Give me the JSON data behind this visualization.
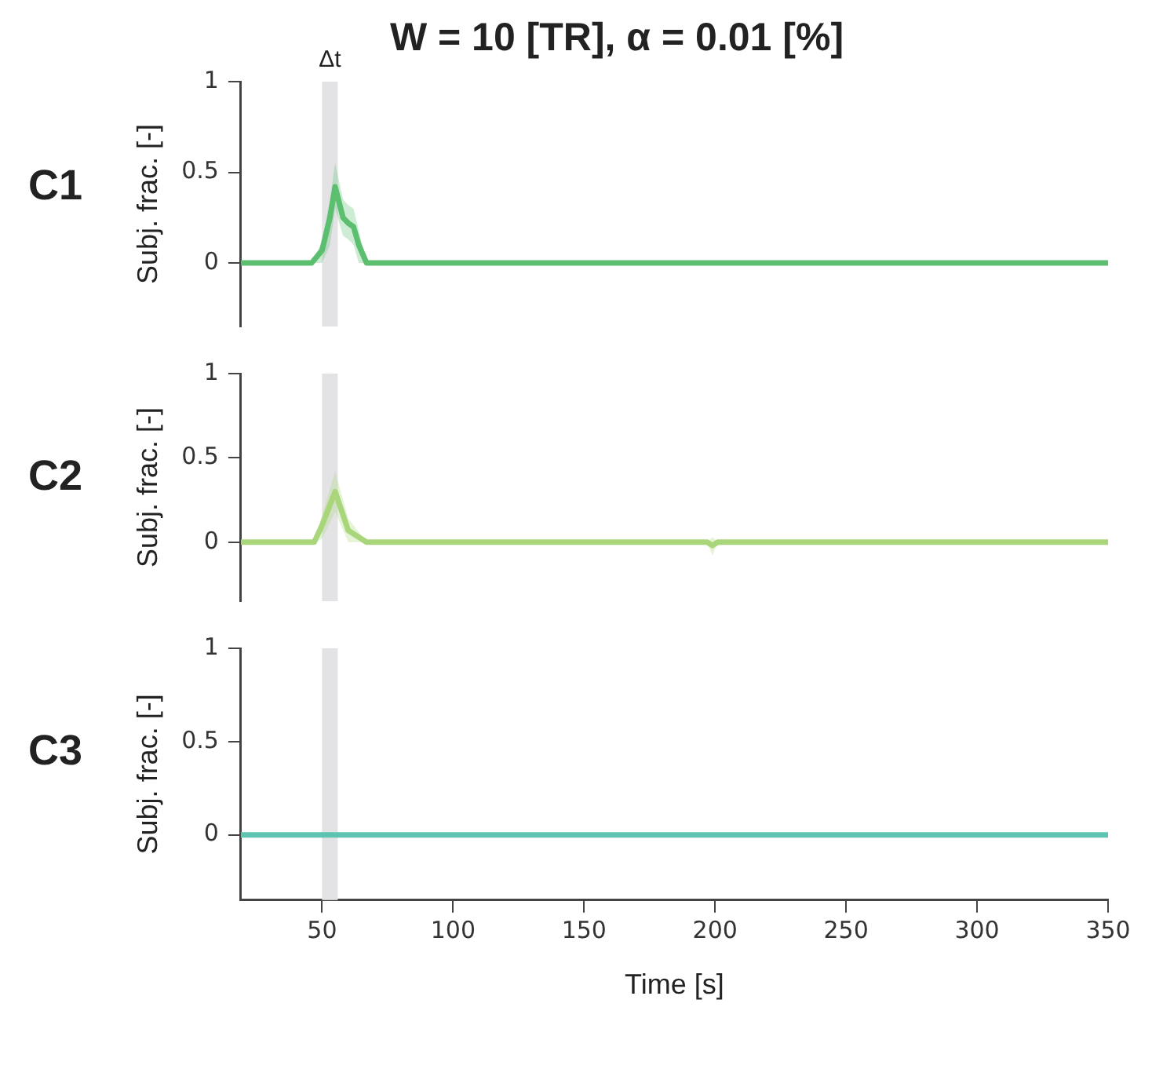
{
  "chart_data": [
    {
      "type": "line",
      "title": "W = 10 [TR], α = 0.01 [%]",
      "ylabel": "Subj. frac. [-]",
      "annotations": [
        "C1"
      ],
      "xlim": [
        19,
        350
      ],
      "ylim": [
        -0.35,
        1
      ],
      "yticks": [
        0,
        0.5,
        1
      ],
      "tick_labels": "y",
      "grid": false,
      "legend": false,
      "bands": [
        {
          "axis": "x",
          "from": 50,
          "to": 56,
          "label": "Δt",
          "color": "#e3e3e5"
        }
      ],
      "series": [
        {
          "color": "#5cbf6f",
          "x": [
            19,
            46,
            50,
            53,
            55,
            58,
            60,
            62,
            64,
            67,
            350
          ],
          "values": [
            0,
            0,
            0.07,
            0.25,
            0.42,
            0.25,
            0.22,
            0.2,
            0.1,
            0,
            0
          ],
          "lower": [
            0,
            0,
            0,
            0.1,
            0.3,
            0.15,
            0.13,
            0.1,
            0,
            0,
            0
          ],
          "upper": [
            0,
            0,
            0.12,
            0.35,
            0.55,
            0.35,
            0.32,
            0.3,
            0.18,
            0,
            0
          ]
        }
      ]
    },
    {
      "type": "line",
      "ylabel": "Subj. frac. [-]",
      "annotations": [
        "C2"
      ],
      "xlim": [
        19,
        350
      ],
      "ylim": [
        -0.35,
        1
      ],
      "yticks": [
        0,
        0.5,
        1
      ],
      "tick_labels": "y",
      "grid": false,
      "legend": false,
      "bands": [
        {
          "axis": "x",
          "from": 50,
          "to": 56,
          "color": "#e3e3e5"
        }
      ],
      "series": [
        {
          "color": "#a9d67a",
          "x": [
            19,
            47,
            50,
            55,
            60,
            62,
            67,
            197,
            199,
            201,
            350
          ],
          "values": [
            0,
            0,
            0.1,
            0.3,
            0.07,
            0.05,
            0,
            0,
            -0.02,
            0,
            0
          ],
          "lower": [
            0,
            0,
            0.02,
            0.18,
            0,
            0,
            0,
            0,
            -0.08,
            0,
            0
          ],
          "upper": [
            0,
            0,
            0.16,
            0.42,
            0.14,
            0.1,
            0,
            0,
            0.03,
            0,
            0
          ]
        }
      ]
    },
    {
      "type": "line",
      "ylabel": "Subj. frac. [-]",
      "xlabel": "Time [s]",
      "annotations": [
        "C3"
      ],
      "xlim": [
        19,
        350
      ],
      "xticks": [
        50,
        100,
        150,
        200,
        250,
        300,
        350
      ],
      "ylim": [
        -0.35,
        1
      ],
      "yticks": [
        0,
        0.5,
        1
      ],
      "grid": false,
      "legend": false,
      "bands": [
        {
          "axis": "x",
          "from": 50,
          "to": 56,
          "color": "#e3e3e5"
        }
      ],
      "series": [
        {
          "color": "#5cc4b0",
          "x": [
            19,
            350
          ],
          "values": [
            0,
            0
          ]
        }
      ]
    }
  ]
}
